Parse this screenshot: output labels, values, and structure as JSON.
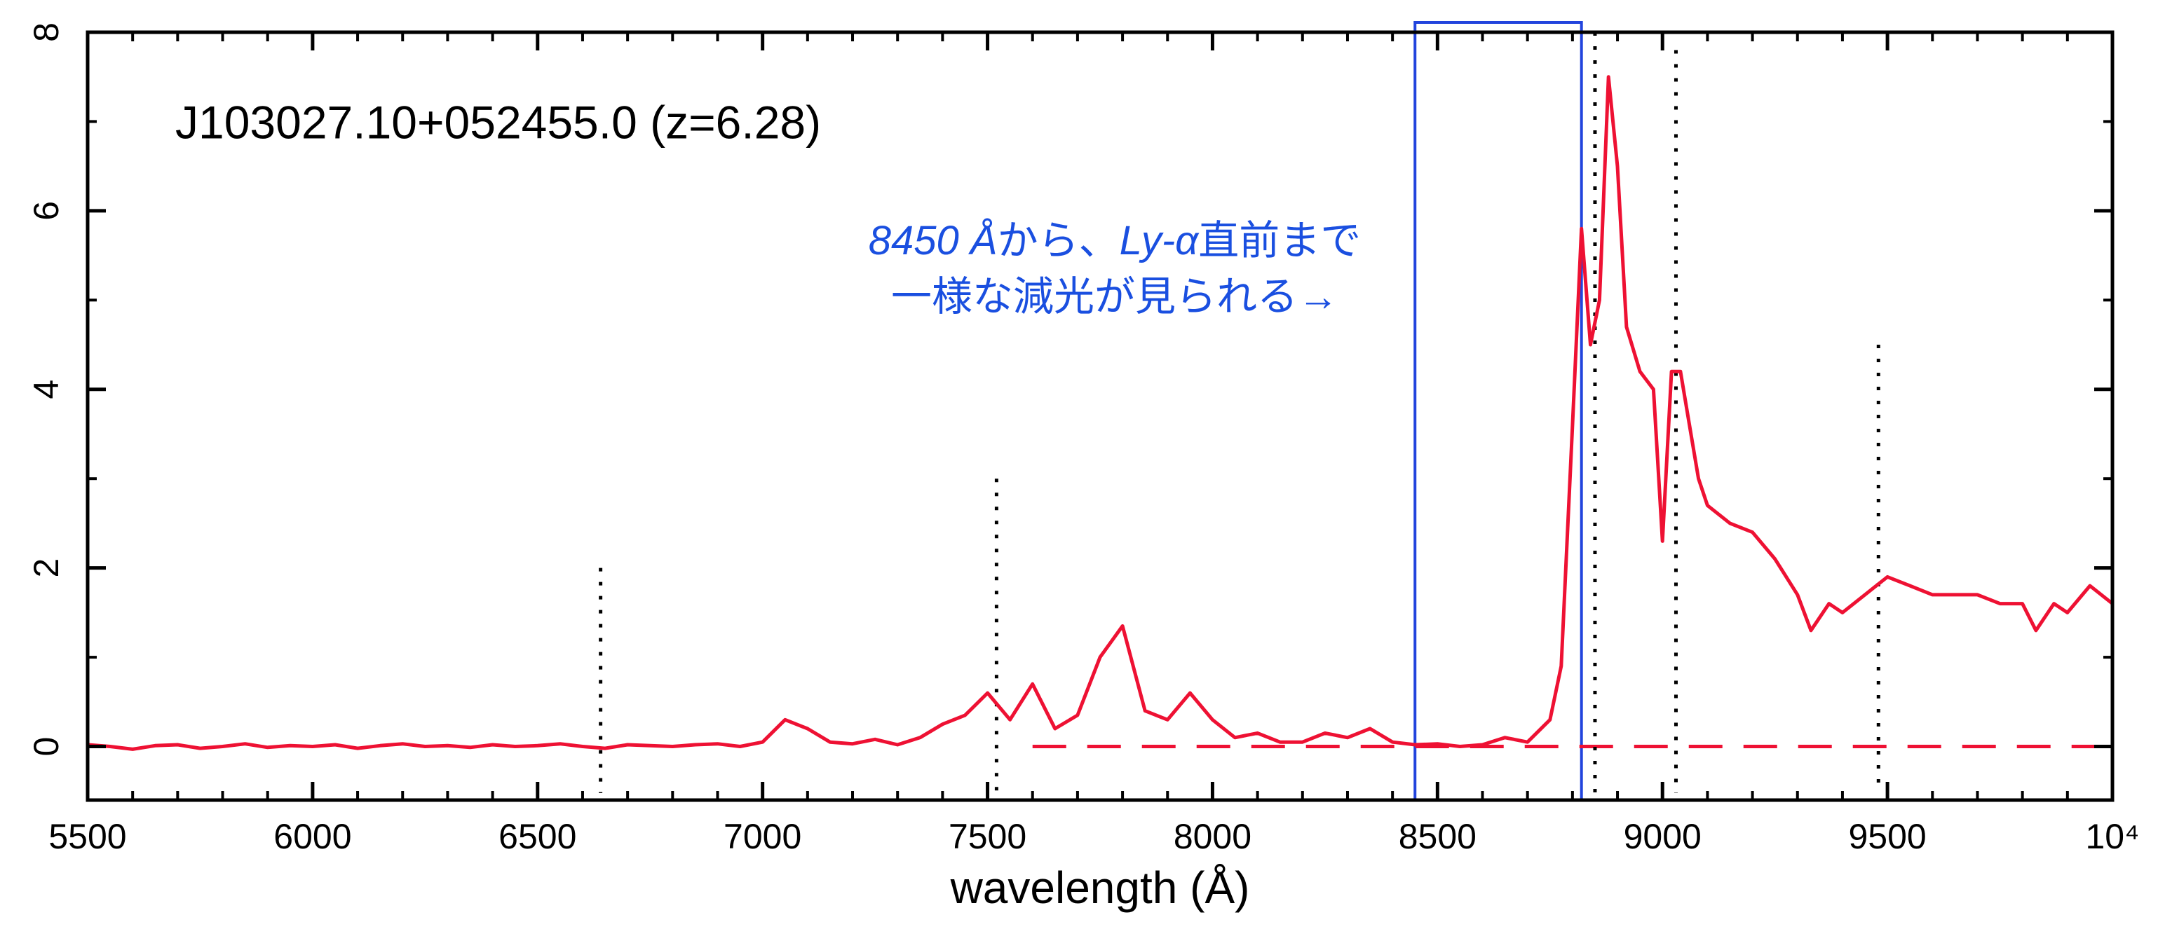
{
  "chart_data": {
    "type": "line",
    "label": "J103027.10+052455.0 (z=6.28)",
    "x_label": "wavelength (Å)",
    "xlim": [
      5500,
      10000
    ],
    "ylim": [
      -0.6,
      8
    ],
    "xticks": [
      5500,
      6000,
      6500,
      7000,
      7500,
      8000,
      8500,
      9000,
      9500,
      {
        "value": 10000,
        "label": "10⁴"
      }
    ],
    "yticks": [
      0,
      2,
      4,
      6,
      8
    ],
    "minor_per_major": 5,
    "series": [
      {
        "color": "#ee1133",
        "x": [
          5500,
          5550,
          5600,
          5650,
          5700,
          5750,
          5800,
          5850,
          5900,
          5950,
          6000,
          6050,
          6100,
          6150,
          6200,
          6250,
          6300,
          6350,
          6400,
          6450,
          6500,
          6550,
          6600,
          6650,
          6700,
          6750,
          6800,
          6850,
          6900,
          6950,
          7000,
          7050,
          7100,
          7150,
          7200,
          7250,
          7300,
          7350,
          7400,
          7450,
          7500,
          7550,
          7600,
          7650,
          7700,
          7750,
          7800,
          7850,
          7900,
          7950,
          8000,
          8050,
          8100,
          8150,
          8200,
          8250,
          8300,
          8350,
          8400,
          8450,
          8500,
          8550,
          8600,
          8650,
          8700,
          8750,
          8775,
          8800,
          8820,
          8840,
          8860,
          8880,
          8900,
          8920,
          8950,
          8980,
          9000,
          9020,
          9040,
          9060,
          9080,
          9100,
          9150,
          9200,
          9250,
          9300,
          9330,
          9370,
          9400,
          9450,
          9500,
          9550,
          9600,
          9650,
          9700,
          9750,
          9800,
          9830,
          9870,
          9900,
          9950,
          10000
        ],
        "values": [
          0.02,
          0.0,
          -0.03,
          0.01,
          0.02,
          -0.02,
          0.0,
          0.03,
          -0.01,
          0.01,
          0.0,
          0.02,
          -0.02,
          0.01,
          0.03,
          0.0,
          0.01,
          -0.01,
          0.02,
          0.0,
          0.01,
          0.03,
          0.0,
          -0.02,
          0.02,
          0.01,
          0.0,
          0.02,
          0.03,
          0.0,
          0.05,
          0.3,
          0.2,
          0.05,
          0.03,
          0.08,
          0.02,
          0.1,
          0.25,
          0.35,
          0.6,
          0.3,
          0.7,
          0.2,
          0.35,
          1.0,
          1.35,
          0.4,
          0.3,
          0.6,
          0.3,
          0.1,
          0.15,
          0.05,
          0.05,
          0.15,
          0.1,
          0.2,
          0.05,
          0.02,
          0.03,
          0.0,
          0.02,
          0.1,
          0.05,
          0.3,
          0.9,
          3.6,
          5.8,
          4.5,
          5.0,
          7.5,
          6.5,
          4.7,
          4.2,
          4.0,
          2.3,
          4.2,
          4.2,
          3.6,
          3.0,
          2.7,
          2.5,
          2.4,
          2.1,
          1.7,
          1.3,
          1.6,
          1.5,
          1.7,
          1.9,
          1.8,
          1.7,
          1.7,
          1.7,
          1.6,
          1.6,
          1.3,
          1.6,
          1.5,
          1.8,
          1.6
        ]
      }
    ],
    "reference_line": {
      "y": 0,
      "from_x": 7600,
      "color": "#ee1133"
    },
    "line_markers": [
      {
        "x": 6640,
        "top": 2.0
      },
      {
        "x": 7520,
        "top": 3.0
      },
      {
        "x": 8850,
        "top": 8
      },
      {
        "x": 9030,
        "top": 7.8
      },
      {
        "x": 9480,
        "top": 4.5
      }
    ],
    "highlight": {
      "x": [
        8450,
        8820
      ],
      "color": "#2244dd"
    },
    "annotation": {
      "color": "#1a4fe0",
      "lines": [
        [
          {
            "text": "8450 Å",
            "italic": true
          },
          {
            "text": "から、"
          },
          {
            "text": "Ly-α",
            "italic": true
          },
          {
            "text": "直前まで"
          }
        ],
        [
          {
            "text": "一様な減光が見られる→"
          }
        ]
      ]
    }
  }
}
